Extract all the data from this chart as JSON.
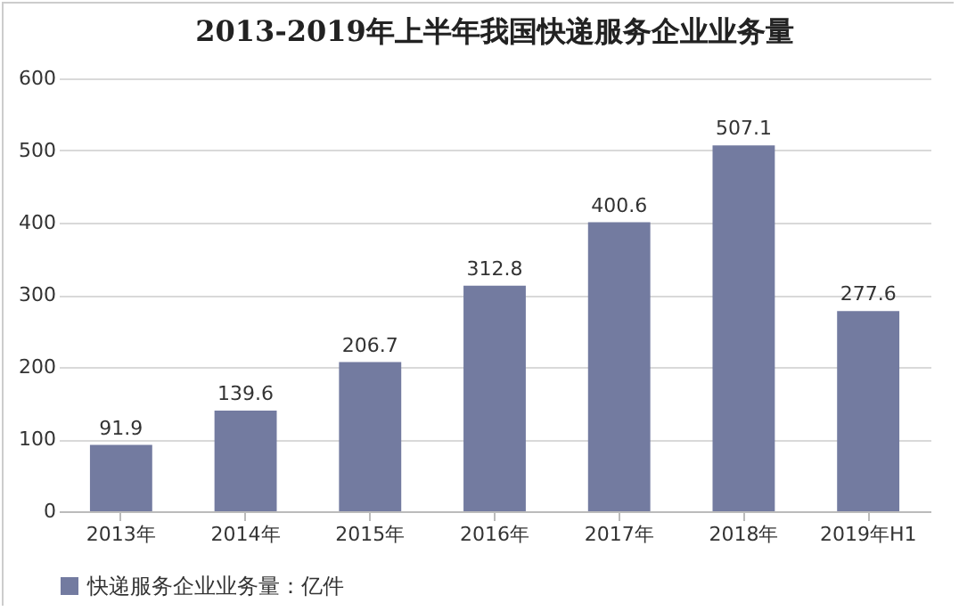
{
  "chart_data": {
    "type": "bar",
    "title": "2013-2019年上半年我国快递服务企业业务量",
    "categories": [
      "2013年",
      "2014年",
      "2015年",
      "2016年",
      "2017年",
      "2018年",
      "2019年H1"
    ],
    "series": [
      {
        "name": "快递服务企业业务量：亿件",
        "color": "#737ba0",
        "values": [
          91.9,
          139.6,
          206.7,
          312.8,
          400.6,
          507.1,
          277.6
        ]
      }
    ],
    "ylim": [
      0,
      600
    ],
    "yticks": [
      0,
      100,
      200,
      300,
      400,
      500,
      600
    ],
    "grid": "y",
    "legend": "bottom",
    "data_labels": true
  }
}
